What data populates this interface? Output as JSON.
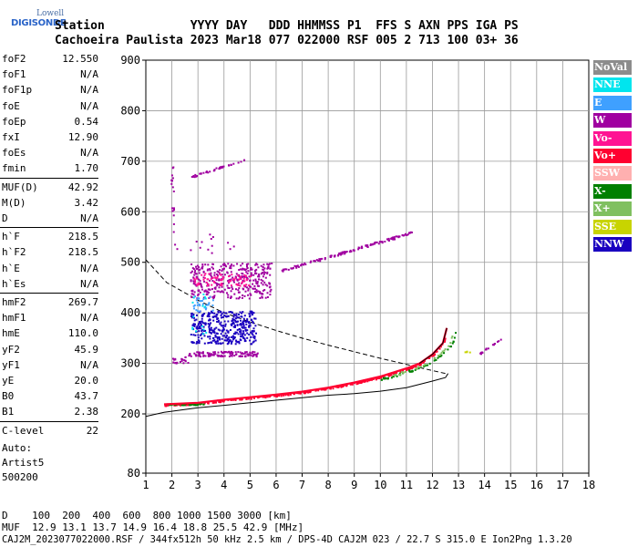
{
  "header": {
    "logo_line1": "Lowell",
    "logo_line2": "DIGISONDE",
    "row1": "Station            YYYY DAY   DDD HHMMSS P1  FFS S AXN PPS IGA PS",
    "row2": "Cachoeira Paulista 2023 Mar18 077 022000 RSF 005 2 713 100 03+ 36"
  },
  "params": [
    {
      "k": "foF2",
      "v": "12.550"
    },
    {
      "k": "foF1",
      "v": "N/A"
    },
    {
      "k": "foF1p",
      "v": "N/A"
    },
    {
      "k": "foE",
      "v": "N/A"
    },
    {
      "k": "foEp",
      "v": "0.54"
    },
    {
      "k": "fxI",
      "v": "12.90"
    },
    {
      "k": "foEs",
      "v": "N/A"
    },
    {
      "k": "fmin",
      "v": "1.70"
    },
    {
      "k": "MUF(D)",
      "v": "42.92"
    },
    {
      "k": "M(D)",
      "v": "3.42"
    },
    {
      "k": "D",
      "v": "N/A"
    },
    {
      "k": "h`F",
      "v": "218.5"
    },
    {
      "k": "h`F2",
      "v": "218.5"
    },
    {
      "k": "h`E",
      "v": "N/A"
    },
    {
      "k": "h`Es",
      "v": "N/A"
    },
    {
      "k": "hmF2",
      "v": "269.7"
    },
    {
      "k": "hmF1",
      "v": "N/A"
    },
    {
      "k": "hmE",
      "v": "110.0"
    },
    {
      "k": "yF2",
      "v": "45.9"
    },
    {
      "k": "yF1",
      "v": "N/A"
    },
    {
      "k": "yE",
      "v": "20.0"
    },
    {
      "k": "B0",
      "v": "43.7"
    },
    {
      "k": "B1",
      "v": "2.38"
    },
    {
      "k": "C-level",
      "v": "22"
    }
  ],
  "autoscale": {
    "line1": "Auto:",
    "line2": "Artist5",
    "line3": "500200"
  },
  "legend": [
    {
      "label": "NoVal",
      "color": "#8c8c8c"
    },
    {
      "label": "NNE",
      "color": "#00e5ee"
    },
    {
      "label": "E",
      "color": "#3fa0ff"
    },
    {
      "label": "W",
      "color": "#a000a0"
    },
    {
      "label": "Vo-",
      "color": "#ff1493"
    },
    {
      "label": "Vo+",
      "color": "#ff0030"
    },
    {
      "label": "SSW",
      "color": "#ffb0b0"
    },
    {
      "label": "X-",
      "color": "#008000"
    },
    {
      "label": "X+",
      "color": "#80c060"
    },
    {
      "label": "SSE",
      "color": "#c8d400"
    },
    {
      "label": "NNW",
      "color": "#1a00c0"
    }
  ],
  "footer": {
    "row1": "D    100  200  400  600  800 1000 1500 3000 [km]",
    "row2": "MUF  12.9 13.1 13.7 14.9 16.4 18.8 25.5 42.9 [MHz]",
    "row3": "CAJ2M_2023077022000.RSF / 344fx512h 50 kHz 2.5 km / DPS-4D CAJ2M 023 / 22.7 S 315.0 E Ion2Png 1.3.20"
  },
  "chart_data": {
    "type": "scatter",
    "xlim": [
      1,
      18
    ],
    "ylim": [
      80,
      900
    ],
    "x_ticks": [
      1,
      2,
      3,
      4,
      5,
      6,
      7,
      8,
      9,
      10,
      11,
      12,
      13,
      14,
      15,
      16,
      17,
      18
    ],
    "y_ticks": [
      80,
      200,
      300,
      400,
      500,
      600,
      700,
      800,
      900
    ],
    "grid": true,
    "grid_x_start": 2,
    "grid_y": [
      200,
      300,
      400,
      500,
      600,
      700,
      800
    ],
    "profile_curve": [
      [
        1.0,
        195
      ],
      [
        1.7,
        203
      ],
      [
        3,
        212
      ],
      [
        4,
        217
      ],
      [
        5,
        222
      ],
      [
        6,
        227
      ],
      [
        7,
        232
      ],
      [
        8,
        237
      ],
      [
        9,
        240
      ],
      [
        10,
        245
      ],
      [
        11,
        252
      ],
      [
        12,
        265
      ],
      [
        12.5,
        272
      ],
      [
        12.6,
        280
      ]
    ],
    "trace_line": [
      [
        1.7,
        219
      ],
      [
        3,
        222
      ],
      [
        4,
        228
      ],
      [
        5,
        233
      ],
      [
        6,
        238
      ],
      [
        7,
        244
      ],
      [
        8,
        252
      ],
      [
        9,
        262
      ],
      [
        10,
        274
      ],
      [
        11,
        290
      ],
      [
        11.5,
        300
      ],
      [
        12,
        318
      ],
      [
        12.4,
        340
      ],
      [
        12.55,
        370
      ]
    ],
    "dashed_curve": [
      [
        1.0,
        505
      ],
      [
        1.8,
        460
      ],
      [
        3,
        425
      ],
      [
        4,
        400
      ],
      [
        5,
        382
      ],
      [
        6,
        365
      ],
      [
        7,
        350
      ],
      [
        8,
        336
      ],
      [
        9,
        323
      ],
      [
        10,
        310
      ],
      [
        11,
        298
      ],
      [
        11.8,
        288
      ],
      [
        12.5,
        280
      ]
    ],
    "clusters": [
      {
        "legend": "Vo+",
        "x": [
          1.7,
          12.5
        ],
        "y": [
          215,
          340
        ],
        "n": 320,
        "follow": "trace_line",
        "spread": 4
      },
      {
        "legend": "X-",
        "x": [
          1.7,
          3.2
        ],
        "y": [
          219,
          222
        ],
        "n": 40,
        "follow": "flat",
        "spread": 3
      },
      {
        "legend": "X-",
        "x": [
          10,
          13
        ],
        "y": [
          290,
          345
        ],
        "n": 50,
        "follow": "trace_line",
        "spread": 4,
        "xoff": 0.35
      },
      {
        "legend": "X+",
        "x": [
          10.5,
          12.8
        ],
        "y": [
          290,
          330
        ],
        "n": 30,
        "follow": "trace_line",
        "spread": 4,
        "xoff": 0.25
      },
      {
        "legend": "W",
        "x": [
          2.7,
          5.8
        ],
        "y": [
          430,
          500
        ],
        "n": 360,
        "follow": "block",
        "spread": 0
      },
      {
        "legend": "W",
        "x": [
          6.2,
          11.2
        ],
        "y": [
          485,
          560
        ],
        "n": 140,
        "follow": "slope",
        "spread": 5
      },
      {
        "legend": "W",
        "x": [
          2.6,
          5.3
        ],
        "y": [
          315,
          325
        ],
        "n": 120,
        "follow": "block",
        "spread": 0
      },
      {
        "legend": "W",
        "x": [
          2.0,
          2.6
        ],
        "y": [
          300,
          315
        ],
        "n": 20,
        "follow": "block",
        "spread": 0
      },
      {
        "legend": "W",
        "x": [
          2.7,
          4.8
        ],
        "y": [
          670,
          705
        ],
        "n": 40,
        "follow": "slope",
        "spread": 4
      },
      {
        "legend": "W",
        "x": [
          13.8,
          14.6
        ],
        "y": [
          320,
          350
        ],
        "n": 18,
        "follow": "slope",
        "spread": 4
      },
      {
        "legend": "NNW",
        "x": [
          2.7,
          5.2
        ],
        "y": [
          340,
          405
        ],
        "n": 380,
        "follow": "block",
        "spread": 0
      },
      {
        "legend": "Vo-",
        "x": [
          2.8,
          5.0
        ],
        "y": [
          455,
          480
        ],
        "n": 70,
        "follow": "block",
        "spread": 0
      },
      {
        "legend": "E",
        "x": [
          2.8,
          3.6
        ],
        "y": [
          405,
          435
        ],
        "n": 30,
        "follow": "block",
        "spread": 0
      },
      {
        "legend": "NNE",
        "x": [
          2.7,
          3.3
        ],
        "y": [
          360,
          440
        ],
        "n": 15,
        "follow": "block",
        "spread": 0
      },
      {
        "legend": "W",
        "x": [
          1.95,
          2.05
        ],
        "y": [
          560,
          690
        ],
        "n": 18,
        "follow": "block",
        "spread": 0
      },
      {
        "legend": "SSE",
        "x": [
          13.2,
          13.5
        ],
        "y": [
          322,
          325
        ],
        "n": 4,
        "follow": "block",
        "spread": 0
      },
      {
        "legend": "W",
        "x": [
          2.0,
          4.5
        ],
        "y": [
          520,
          560
        ],
        "n": 15,
        "follow": "block",
        "spread": 0
      }
    ]
  }
}
